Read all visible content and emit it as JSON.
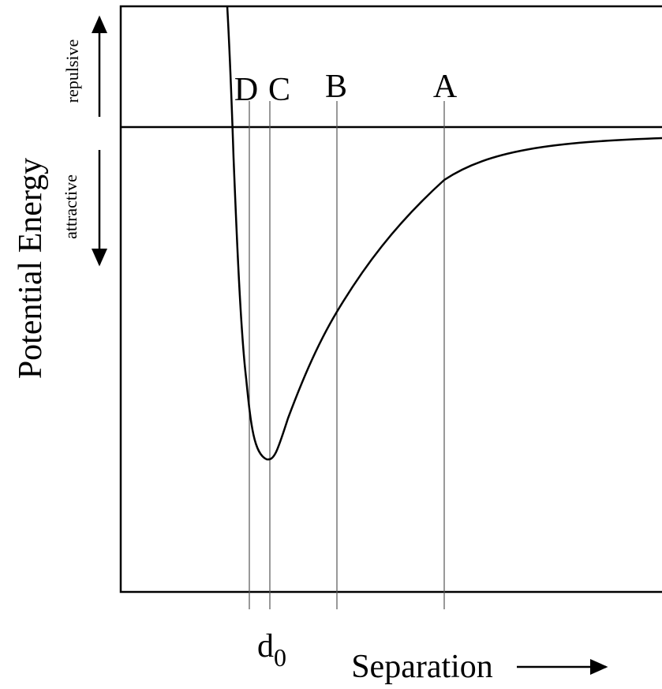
{
  "axes": {
    "y_label": "Potential Energy",
    "x_label": "Separation",
    "repulsive": "repulsive",
    "attractive": "attractive"
  },
  "markers": [
    {
      "label": "D"
    },
    {
      "label": "C"
    },
    {
      "label": "B"
    },
    {
      "label": "A"
    }
  ],
  "equilibrium": {
    "base": "d",
    "subscript": "0"
  }
}
